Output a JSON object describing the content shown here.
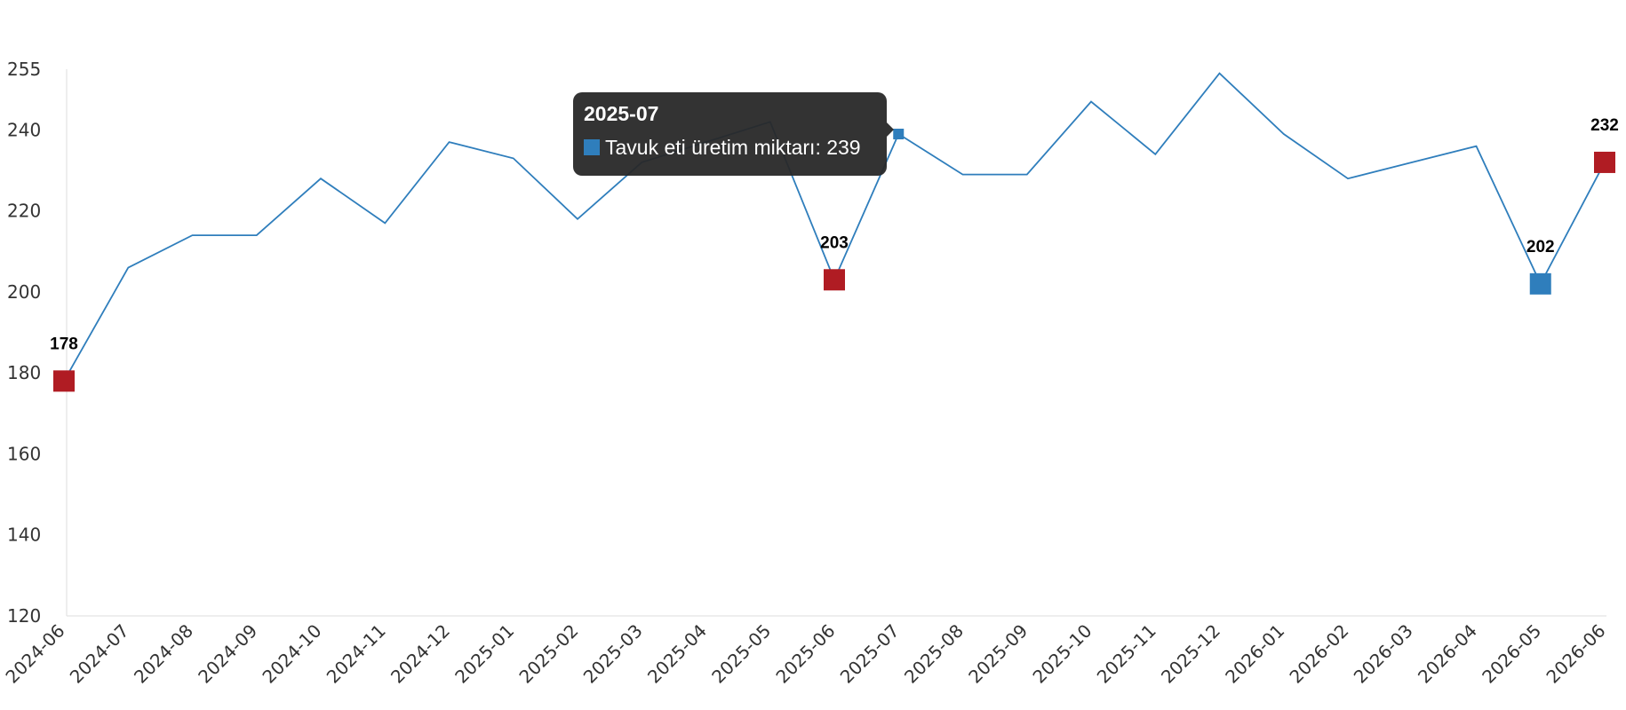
{
  "chart_data": {
    "type": "line",
    "categories": [
      "2024-06",
      "2024-07",
      "2024-08",
      "2024-09",
      "2024-10",
      "2024-11",
      "2024-12",
      "2025-01",
      "2025-02",
      "2025-03",
      "2025-04",
      "2025-05",
      "2025-06",
      "2025-07",
      "2025-08",
      "2025-09",
      "2025-10",
      "2025-11",
      "2025-12",
      "2026-01",
      "2026-02",
      "2026-03",
      "2026-04",
      "2026-05",
      "2026-06"
    ],
    "series": [
      {
        "name": "Tavuk eti üretim miktarı",
        "color": "#2f7ebc",
        "values": [
          178,
          206,
          214,
          214,
          228,
          217,
          237,
          233,
          218,
          232,
          237,
          242,
          203,
          239,
          229,
          229,
          247,
          234,
          254,
          239,
          228,
          232,
          236,
          202,
          232
        ]
      }
    ],
    "ylim": [
      120,
      255
    ],
    "yticks": [
      120,
      140,
      160,
      180,
      200,
      220,
      240,
      255
    ],
    "grid": false,
    "highlighted_points": [
      {
        "category": "2024-06",
        "value": 178,
        "label": "178",
        "color": "#b01c23"
      },
      {
        "category": "2025-06",
        "value": 203,
        "label": "203",
        "color": "#b01c23"
      },
      {
        "category": "2026-05",
        "value": 202,
        "label": "202",
        "color": "#2f7ebc"
      },
      {
        "category": "2026-06",
        "value": 232,
        "label": "232",
        "color": "#b01c23"
      }
    ],
    "tooltip": {
      "category": "2025-07",
      "title": "2025-07",
      "text": "Tavuk eti üretim miktarı: 239",
      "value": 239
    }
  }
}
